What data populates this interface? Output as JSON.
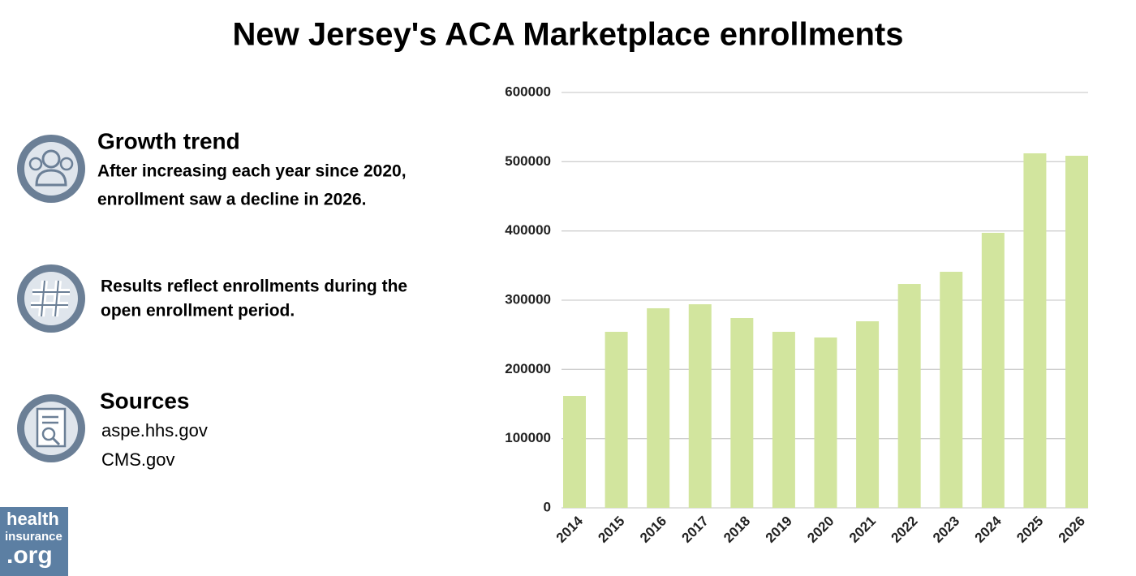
{
  "chart_data": {
    "type": "bar",
    "title": "New Jersey's ACA Marketplace enrollments",
    "categories": [
      "2014",
      "2015",
      "2016",
      "2017",
      "2018",
      "2019",
      "2020",
      "2021",
      "2022",
      "2023",
      "2024",
      "2025",
      "2026"
    ],
    "values": [
      161700,
      254300,
      288300,
      294100,
      274200,
      254300,
      246100,
      269500,
      323400,
      341000,
      397300,
      512100,
      508600
    ],
    "color": "#d2e59e",
    "ylim": [
      0,
      600000
    ],
    "yticks": [
      0,
      100000,
      200000,
      300000,
      400000,
      500000,
      600000
    ],
    "grid": true
  },
  "notes": [
    {
      "heading": "Growth trend",
      "lines": [
        "After increasing each year since 2020,",
        "enrollment saw a decline in 2026."
      ]
    },
    {
      "lines": [
        "Results reflect enrollments during the",
        "open enrollment period."
      ]
    }
  ],
  "sources": {
    "heading": "Sources",
    "items": [
      "aspe.hhs.gov",
      "CMS.gov"
    ]
  },
  "logo": [
    "health",
    "insurance",
    ".org"
  ]
}
